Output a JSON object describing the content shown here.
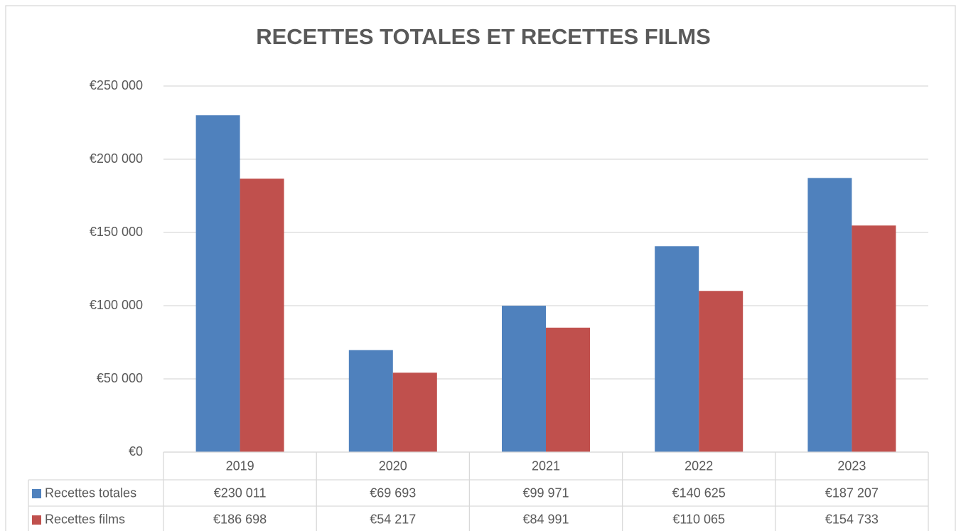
{
  "chart_data": {
    "type": "bar",
    "title": "RECETTES TOTALES ET RECETTES FILMS",
    "categories": [
      "2019",
      "2020",
      "2021",
      "2022",
      "2023"
    ],
    "series": [
      {
        "name": "Recettes totales",
        "color": "#4f81bd",
        "values": [
          230011,
          69693,
          99971,
          140625,
          187207
        ],
        "value_labels": [
          "€230 011",
          "€69 693",
          "€99 971",
          "€140 625",
          "€187 207"
        ]
      },
      {
        "name": "Recettes films",
        "color": "#c0504d",
        "values": [
          186698,
          54217,
          84991,
          110065,
          154733
        ],
        "value_labels": [
          "€186 698",
          "€54 217",
          "€84 991",
          "€110 065",
          "€154 733"
        ]
      }
    ],
    "ylim": [
      0,
      250000
    ],
    "yticks": [
      {
        "value": 0,
        "label": "€0"
      },
      {
        "value": 50000,
        "label": "€50 000"
      },
      {
        "value": 100000,
        "label": "€100 000"
      },
      {
        "value": 150000,
        "label": "€150 000"
      },
      {
        "value": 200000,
        "label": "€200 000"
      },
      {
        "value": 250000,
        "label": "€250 000"
      }
    ],
    "grid": true
  }
}
